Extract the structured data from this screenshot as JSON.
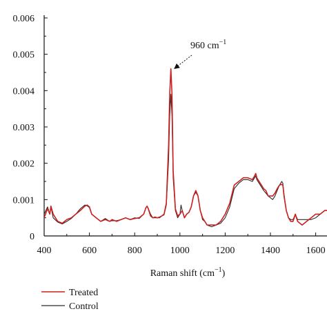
{
  "chart_data": {
    "type": "line",
    "xlabel_main": "Raman shift (cm",
    "xlabel_sup": "−1",
    "xlabel_end": ")",
    "xlim": [
      400,
      1650
    ],
    "ylim": [
      0,
      0.006
    ],
    "x_ticks": [
      400,
      600,
      800,
      1000,
      1200,
      1400,
      1600
    ],
    "y_ticks": [
      0,
      0.001,
      0.002,
      0.003,
      0.004,
      0.005,
      0.006
    ],
    "x_tick_labels": [
      "400",
      "600",
      "800",
      "1000",
      "1200",
      "1400",
      "1600"
    ],
    "y_tick_labels": [
      "0",
      "0.001",
      "0.002",
      "0.003",
      "0.004",
      "0.005",
      "0.006"
    ],
    "annotation": {
      "text": "960 cm",
      "sup": "−1",
      "x": 960,
      "y": 0.0046
    },
    "legend_position": "bottom-left",
    "colors": {
      "treated": "#cc1f1f",
      "control": "#2a2a2a"
    },
    "series": [
      {
        "name": "Treated",
        "x": [
          400,
          415,
          425,
          430,
          440,
          460,
          480,
          500,
          520,
          540,
          560,
          580,
          590,
          600,
          610,
          630,
          650,
          670,
          690,
          700,
          720,
          740,
          760,
          780,
          800,
          820,
          840,
          850,
          855,
          860,
          870,
          880,
          890,
          900,
          910,
          920,
          930,
          940,
          950,
          955,
          960,
          965,
          970,
          980,
          990,
          1000,
          1010,
          1020,
          1030,
          1040,
          1050,
          1060,
          1070,
          1080,
          1090,
          1100,
          1110,
          1120,
          1140,
          1160,
          1180,
          1200,
          1220,
          1240,
          1260,
          1280,
          1300,
          1320,
          1330,
          1335,
          1340,
          1350,
          1370,
          1380,
          1390,
          1410,
          1420,
          1430,
          1440,
          1450,
          1455,
          1460,
          1470,
          1480,
          1490,
          1500,
          1510,
          1520,
          1540,
          1560,
          1580,
          1600,
          1620,
          1640,
          1650
        ],
        "y": [
          0.0005,
          0.00075,
          0.0006,
          0.00082,
          0.0006,
          0.0004,
          0.00035,
          0.00045,
          0.0005,
          0.0006,
          0.0007,
          0.00082,
          0.00085,
          0.0008,
          0.0006,
          0.0005,
          0.0004,
          0.00045,
          0.0004,
          0.00045,
          0.0004,
          0.00045,
          0.0005,
          0.00045,
          0.00048,
          0.0005,
          0.0006,
          0.00078,
          0.00082,
          0.00075,
          0.00055,
          0.0005,
          0.00052,
          0.0005,
          0.00052,
          0.00055,
          0.0006,
          0.0009,
          0.0025,
          0.0039,
          0.0046,
          0.0039,
          0.0018,
          0.00075,
          0.00055,
          0.0006,
          0.0007,
          0.0005,
          0.0006,
          0.00065,
          0.0008,
          0.0011,
          0.00125,
          0.0011,
          0.0007,
          0.0005,
          0.0004,
          0.0003,
          0.0003,
          0.0003,
          0.0004,
          0.0006,
          0.0009,
          0.0014,
          0.0015,
          0.0016,
          0.0016,
          0.00155,
          0.00165,
          0.00172,
          0.0016,
          0.0015,
          0.0013,
          0.00125,
          0.0011,
          0.0011,
          0.00118,
          0.0013,
          0.0014,
          0.00142,
          0.0014,
          0.0011,
          0.0007,
          0.0005,
          0.0004,
          0.0004,
          0.0006,
          0.0004,
          0.0003,
          0.0004,
          0.0005,
          0.0006,
          0.0006,
          0.0007,
          0.0007
        ]
      },
      {
        "name": "Control",
        "x": [
          400,
          415,
          425,
          430,
          440,
          460,
          480,
          500,
          520,
          540,
          560,
          580,
          590,
          600,
          610,
          630,
          650,
          670,
          690,
          700,
          720,
          740,
          760,
          780,
          800,
          820,
          840,
          850,
          855,
          860,
          870,
          880,
          890,
          900,
          910,
          920,
          930,
          940,
          950,
          955,
          960,
          965,
          970,
          980,
          990,
          1000,
          1005,
          1010,
          1020,
          1030,
          1040,
          1050,
          1060,
          1070,
          1080,
          1090,
          1100,
          1110,
          1120,
          1140,
          1160,
          1180,
          1200,
          1220,
          1240,
          1260,
          1280,
          1300,
          1320,
          1330,
          1335,
          1340,
          1350,
          1370,
          1380,
          1390,
          1410,
          1420,
          1430,
          1440,
          1450,
          1455,
          1460,
          1470,
          1480,
          1490,
          1500,
          1510,
          1520,
          1540,
          1560,
          1580,
          1600,
          1620,
          1640,
          1650
        ],
        "y": [
          0.0006,
          0.0008,
          0.0006,
          0.0008,
          0.0005,
          0.00038,
          0.00033,
          0.0004,
          0.00048,
          0.0006,
          0.00075,
          0.00085,
          0.00083,
          0.00078,
          0.0006,
          0.0005,
          0.0004,
          0.00048,
          0.0004,
          0.00042,
          0.00042,
          0.00045,
          0.0005,
          0.00045,
          0.0005,
          0.00048,
          0.0006,
          0.00078,
          0.00082,
          0.00076,
          0.0006,
          0.0005,
          0.0005,
          0.0005,
          0.0005,
          0.00055,
          0.00058,
          0.00085,
          0.0021,
          0.0033,
          0.0039,
          0.0033,
          0.0016,
          0.0007,
          0.0005,
          0.0006,
          0.00085,
          0.0007,
          0.0005,
          0.0006,
          0.00065,
          0.0008,
          0.0011,
          0.0012,
          0.0011,
          0.0007,
          0.00045,
          0.0004,
          0.0003,
          0.00025,
          0.0003,
          0.00035,
          0.0005,
          0.0008,
          0.0013,
          0.00145,
          0.00155,
          0.00155,
          0.0015,
          0.0016,
          0.00165,
          0.00155,
          0.00145,
          0.00125,
          0.00118,
          0.0011,
          0.001,
          0.0011,
          0.00125,
          0.0014,
          0.0015,
          0.00145,
          0.00115,
          0.0007,
          0.0005,
          0.00045,
          0.00045,
          0.0006,
          0.00045,
          0.00045,
          0.00045,
          0.00045,
          0.0005,
          0.0006,
          0.0007,
          0.0007
        ]
      }
    ]
  }
}
